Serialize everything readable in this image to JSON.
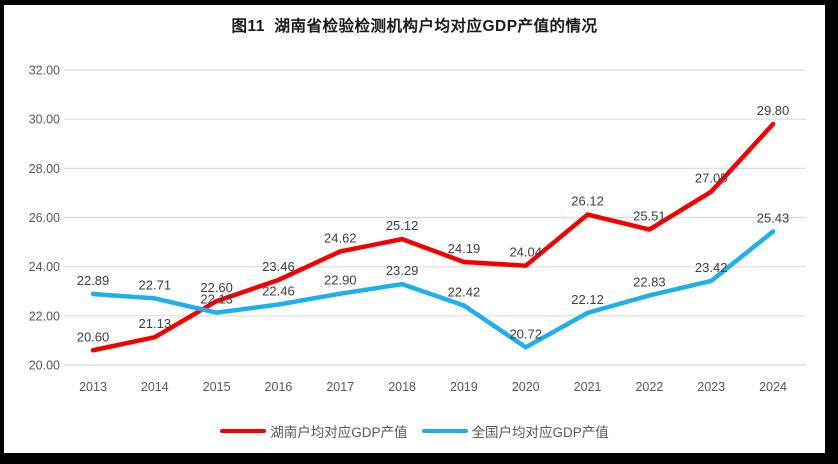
{
  "window": {
    "background_color": "#FFFFFF",
    "frame_color": "#000000"
  },
  "chart_data": {
    "type": "line",
    "title": "图11  湖南省检验检测机构户均对应GDP产值的情况",
    "categories": [
      "2013",
      "2014",
      "2015",
      "2016",
      "2017",
      "2018",
      "2019",
      "2020",
      "2021",
      "2022",
      "2023",
      "2024"
    ],
    "series": [
      {
        "name": "湖南户均对应GDP产值",
        "color": "#F40000",
        "values": [
          20.6,
          21.13,
          22.6,
          23.46,
          24.62,
          25.12,
          24.19,
          24.04,
          26.12,
          25.51,
          27.05,
          29.8
        ]
      },
      {
        "name": "全国户均对应GDP产值",
        "color": "#1FB0EC",
        "values": [
          22.89,
          22.71,
          22.13,
          22.46,
          22.9,
          23.29,
          22.42,
          20.72,
          22.12,
          22.83,
          23.42,
          25.43
        ]
      }
    ],
    "xlabel": "",
    "ylabel": "",
    "ylim": [
      20,
      32
    ],
    "ytick_step": 2,
    "yticks": [
      "20.00",
      "22.00",
      "24.00",
      "26.00",
      "28.00",
      "30.00",
      "32.00"
    ],
    "grid": true,
    "gridline_color": "#DCDCDC",
    "tick_label_color": "#595959",
    "data_label_color": "#404040",
    "data_labels_shown": true,
    "legend_position": "bottom"
  }
}
